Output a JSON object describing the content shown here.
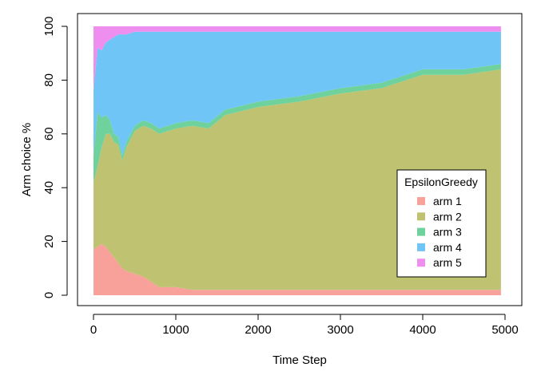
{
  "chart_data": {
    "type": "area",
    "stacked": true,
    "xlabel": "Time Step",
    "ylabel": "Arm choice %",
    "xlim": [
      0,
      5000
    ],
    "ylim": [
      0,
      100
    ],
    "x_ticks": [
      "0",
      "1000",
      "2000",
      "3000",
      "4000",
      "5000"
    ],
    "y_ticks": [
      "0",
      "20",
      "40",
      "60",
      "80",
      "100"
    ],
    "grid": false,
    "legend": {
      "title": "EpsilonGreedy",
      "placement": "right"
    },
    "x": [
      0,
      50,
      100,
      150,
      200,
      250,
      300,
      350,
      400,
      500,
      600,
      700,
      800,
      1000,
      1200,
      1400,
      1600,
      2000,
      2500,
      3000,
      3500,
      4000,
      4500,
      4950
    ],
    "series": [
      {
        "name": "arm 1",
        "color": "#F8A19A",
        "values": [
          17,
          18,
          19,
          18,
          16,
          14,
          12,
          10,
          9,
          8,
          7,
          5,
          3,
          3,
          2,
          2,
          2,
          2,
          2,
          2,
          2,
          2,
          2,
          2
        ]
      },
      {
        "name": "arm 2",
        "color": "#BFC270",
        "values": [
          25,
          30,
          36,
          42,
          44,
          43,
          44,
          40,
          46,
          53,
          56,
          57,
          57,
          59,
          61,
          60,
          65,
          68,
          70,
          73,
          75,
          80,
          80,
          82
        ]
      },
      {
        "name": "arm 3",
        "color": "#6FD29C",
        "values": [
          10,
          20,
          11,
          7,
          5,
          3,
          3,
          2,
          2,
          2,
          2,
          2,
          2,
          2,
          2,
          2,
          2,
          2,
          2,
          2,
          2,
          2,
          2,
          2
        ]
      },
      {
        "name": "arm 4",
        "color": "#6EC5F6",
        "values": [
          24,
          24,
          25,
          27,
          30,
          36,
          38,
          45,
          40,
          35,
          33,
          34,
          36,
          34,
          33,
          34,
          29,
          26,
          24,
          21,
          19,
          14,
          14,
          12
        ]
      },
      {
        "name": "arm 5",
        "color": "#EE8EEE",
        "values": [
          24,
          8,
          9,
          6,
          5,
          4,
          3,
          3,
          3,
          2,
          2,
          2,
          2,
          2,
          2,
          2,
          2,
          2,
          2,
          2,
          2,
          2,
          2,
          2
        ]
      }
    ]
  }
}
